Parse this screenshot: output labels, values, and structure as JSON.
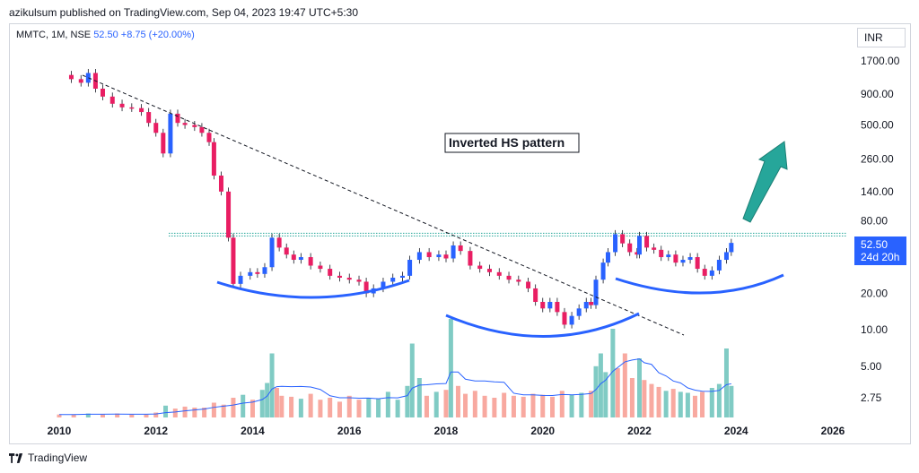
{
  "header": {
    "published_text": "azikulsum published on TradingView.com, Sep 04, 2023 19:47 UTC+5:30"
  },
  "legend": {
    "symbol": "MMTC, 1M, NSE",
    "price": "52.50",
    "change": "+8.75 (+20.00%)"
  },
  "currency_button": "INR",
  "annotation": {
    "text": "Inverted HS pattern"
  },
  "price_label": {
    "price": "52.50",
    "countdown": "24d 20h"
  },
  "footer": {
    "brand": "TradingView"
  },
  "colors": {
    "up": "#2962ff",
    "down": "#e91e63",
    "vol_up": "#80cbc4",
    "vol_down": "#f8a9a0",
    "pattern_curve": "#2962ff",
    "arrow": "#26a69a",
    "neckline": "#26a69a"
  },
  "chart_data": {
    "type": "candlestick",
    "title": "",
    "xlabel": "",
    "ylabel": "",
    "y_scale": "log",
    "x_ticks": [
      "2010",
      "2012",
      "2014",
      "2016",
      "2018",
      "2020",
      "2022",
      "2024",
      "2026"
    ],
    "y_ticks": [
      "1700.00",
      "900.00",
      "500.00",
      "260.00",
      "140.00",
      "80.00",
      "20.00",
      "10.00"
    ],
    "vol_ticks": [
      "5.00",
      "2.75"
    ],
    "xlim": [
      2010,
      2026.5
    ],
    "ylim": [
      7.5,
      2100
    ],
    "neckline": 61,
    "last_price": 52.5,
    "price_series": [
      [
        2010.0,
        1300
      ],
      [
        2010.25,
        1200
      ],
      [
        2010.45,
        1120
      ],
      [
        2010.6,
        1350
      ],
      [
        2010.75,
        1000
      ],
      [
        2010.9,
        860
      ],
      [
        2011.1,
        750
      ],
      [
        2011.3,
        700
      ],
      [
        2011.5,
        690
      ],
      [
        2011.7,
        640
      ],
      [
        2011.85,
        520
      ],
      [
        2012.0,
        430
      ],
      [
        2012.15,
        290
      ],
      [
        2012.3,
        620
      ],
      [
        2012.45,
        520
      ],
      [
        2012.6,
        500
      ],
      [
        2012.8,
        480
      ],
      [
        2012.95,
        430
      ],
      [
        2013.1,
        360
      ],
      [
        2013.2,
        190
      ],
      [
        2013.35,
        140
      ],
      [
        2013.5,
        58
      ],
      [
        2013.6,
        24
      ],
      [
        2013.75,
        28
      ],
      [
        2013.95,
        30
      ],
      [
        2014.1,
        29
      ],
      [
        2014.25,
        33
      ],
      [
        2014.4,
        58
      ],
      [
        2014.55,
        48
      ],
      [
        2014.7,
        42
      ],
      [
        2014.85,
        38
      ],
      [
        2015.0,
        40
      ],
      [
        2015.2,
        34
      ],
      [
        2015.4,
        32
      ],
      [
        2015.6,
        28
      ],
      [
        2015.8,
        27
      ],
      [
        2016.0,
        26
      ],
      [
        2016.2,
        25
      ],
      [
        2016.35,
        20
      ],
      [
        2016.5,
        22
      ],
      [
        2016.7,
        25
      ],
      [
        2016.9,
        27
      ],
      [
        2017.1,
        28
      ],
      [
        2017.25,
        38
      ],
      [
        2017.45,
        44
      ],
      [
        2017.65,
        40
      ],
      [
        2017.85,
        42
      ],
      [
        2018.0,
        39
      ],
      [
        2018.15,
        50
      ],
      [
        2018.3,
        45
      ],
      [
        2018.5,
        34
      ],
      [
        2018.7,
        32
      ],
      [
        2018.9,
        30
      ],
      [
        2019.1,
        28
      ],
      [
        2019.3,
        26
      ],
      [
        2019.5,
        25
      ],
      [
        2019.7,
        22
      ],
      [
        2019.85,
        17
      ],
      [
        2020.0,
        15
      ],
      [
        2020.15,
        17
      ],
      [
        2020.3,
        14
      ],
      [
        2020.45,
        11
      ],
      [
        2020.6,
        13
      ],
      [
        2020.75,
        15
      ],
      [
        2020.9,
        17
      ],
      [
        2021.0,
        16
      ],
      [
        2021.1,
        26
      ],
      [
        2021.25,
        36
      ],
      [
        2021.35,
        44
      ],
      [
        2021.5,
        62
      ],
      [
        2021.65,
        52
      ],
      [
        2021.8,
        44
      ],
      [
        2021.95,
        42
      ],
      [
        2022.0,
        60
      ],
      [
        2022.15,
        48
      ],
      [
        2022.3,
        46
      ],
      [
        2022.45,
        40
      ],
      [
        2022.6,
        42
      ],
      [
        2022.75,
        36
      ],
      [
        2022.9,
        38
      ],
      [
        2023.05,
        40
      ],
      [
        2023.2,
        32
      ],
      [
        2023.35,
        28
      ],
      [
        2023.5,
        31
      ],
      [
        2023.65,
        38
      ],
      [
        2023.8,
        44
      ],
      [
        2023.9,
        52.5
      ]
    ],
    "volume": [
      [
        2010.0,
        0.3
      ],
      [
        2010.3,
        0.3
      ],
      [
        2010.6,
        0.4
      ],
      [
        2010.9,
        0.3
      ],
      [
        2011.2,
        0.4
      ],
      [
        2011.5,
        0.3
      ],
      [
        2011.8,
        0.3
      ],
      [
        2012.0,
        0.5
      ],
      [
        2012.2,
        1.2
      ],
      [
        2012.4,
        0.9
      ],
      [
        2012.6,
        1.1
      ],
      [
        2012.8,
        1.0
      ],
      [
        2013.0,
        1.0
      ],
      [
        2013.2,
        1.5
      ],
      [
        2013.4,
        1.3
      ],
      [
        2013.6,
        2.0
      ],
      [
        2013.8,
        2.3
      ],
      [
        2014.0,
        1.8
      ],
      [
        2014.2,
        2.8
      ],
      [
        2014.3,
        3.5
      ],
      [
        2014.4,
        6.5
      ],
      [
        2014.5,
        3.0
      ],
      [
        2014.6,
        2.2
      ],
      [
        2014.8,
        2.1
      ],
      [
        2015.0,
        1.9
      ],
      [
        2015.2,
        2.4
      ],
      [
        2015.4,
        1.8
      ],
      [
        2015.6,
        2.0
      ],
      [
        2015.8,
        1.6
      ],
      [
        2016.0,
        2.2
      ],
      [
        2016.2,
        1.8
      ],
      [
        2016.4,
        2.0
      ],
      [
        2016.6,
        1.9
      ],
      [
        2016.8,
        2.6
      ],
      [
        2017.0,
        1.8
      ],
      [
        2017.2,
        3.2
      ],
      [
        2017.3,
        7.5
      ],
      [
        2017.45,
        4.0
      ],
      [
        2017.6,
        2.2
      ],
      [
        2017.8,
        2.6
      ],
      [
        2018.0,
        2.8
      ],
      [
        2018.1,
        10.0
      ],
      [
        2018.25,
        3.2
      ],
      [
        2018.4,
        2.4
      ],
      [
        2018.6,
        2.7
      ],
      [
        2018.8,
        2.2
      ],
      [
        2019.0,
        2.0
      ],
      [
        2019.2,
        2.5
      ],
      [
        2019.4,
        2.2
      ],
      [
        2019.6,
        2.1
      ],
      [
        2019.8,
        2.4
      ],
      [
        2020.0,
        2.3
      ],
      [
        2020.2,
        2.1
      ],
      [
        2020.4,
        2.7
      ],
      [
        2020.6,
        2.3
      ],
      [
        2020.8,
        2.5
      ],
      [
        2021.0,
        2.7
      ],
      [
        2021.1,
        5.2
      ],
      [
        2021.2,
        6.5
      ],
      [
        2021.3,
        4.6
      ],
      [
        2021.45,
        9.0
      ],
      [
        2021.55,
        5.0
      ],
      [
        2021.7,
        6.5
      ],
      [
        2021.85,
        4.0
      ],
      [
        2022.0,
        6.0
      ],
      [
        2022.1,
        3.8
      ],
      [
        2022.25,
        3.4
      ],
      [
        2022.4,
        3.1
      ],
      [
        2022.55,
        2.7
      ],
      [
        2022.7,
        2.9
      ],
      [
        2022.85,
        2.6
      ],
      [
        2023.0,
        2.5
      ],
      [
        2023.15,
        2.2
      ],
      [
        2023.3,
        2.6
      ],
      [
        2023.5,
        3.0
      ],
      [
        2023.65,
        3.4
      ],
      [
        2023.8,
        7.0
      ],
      [
        2023.9,
        3.2
      ]
    ]
  }
}
